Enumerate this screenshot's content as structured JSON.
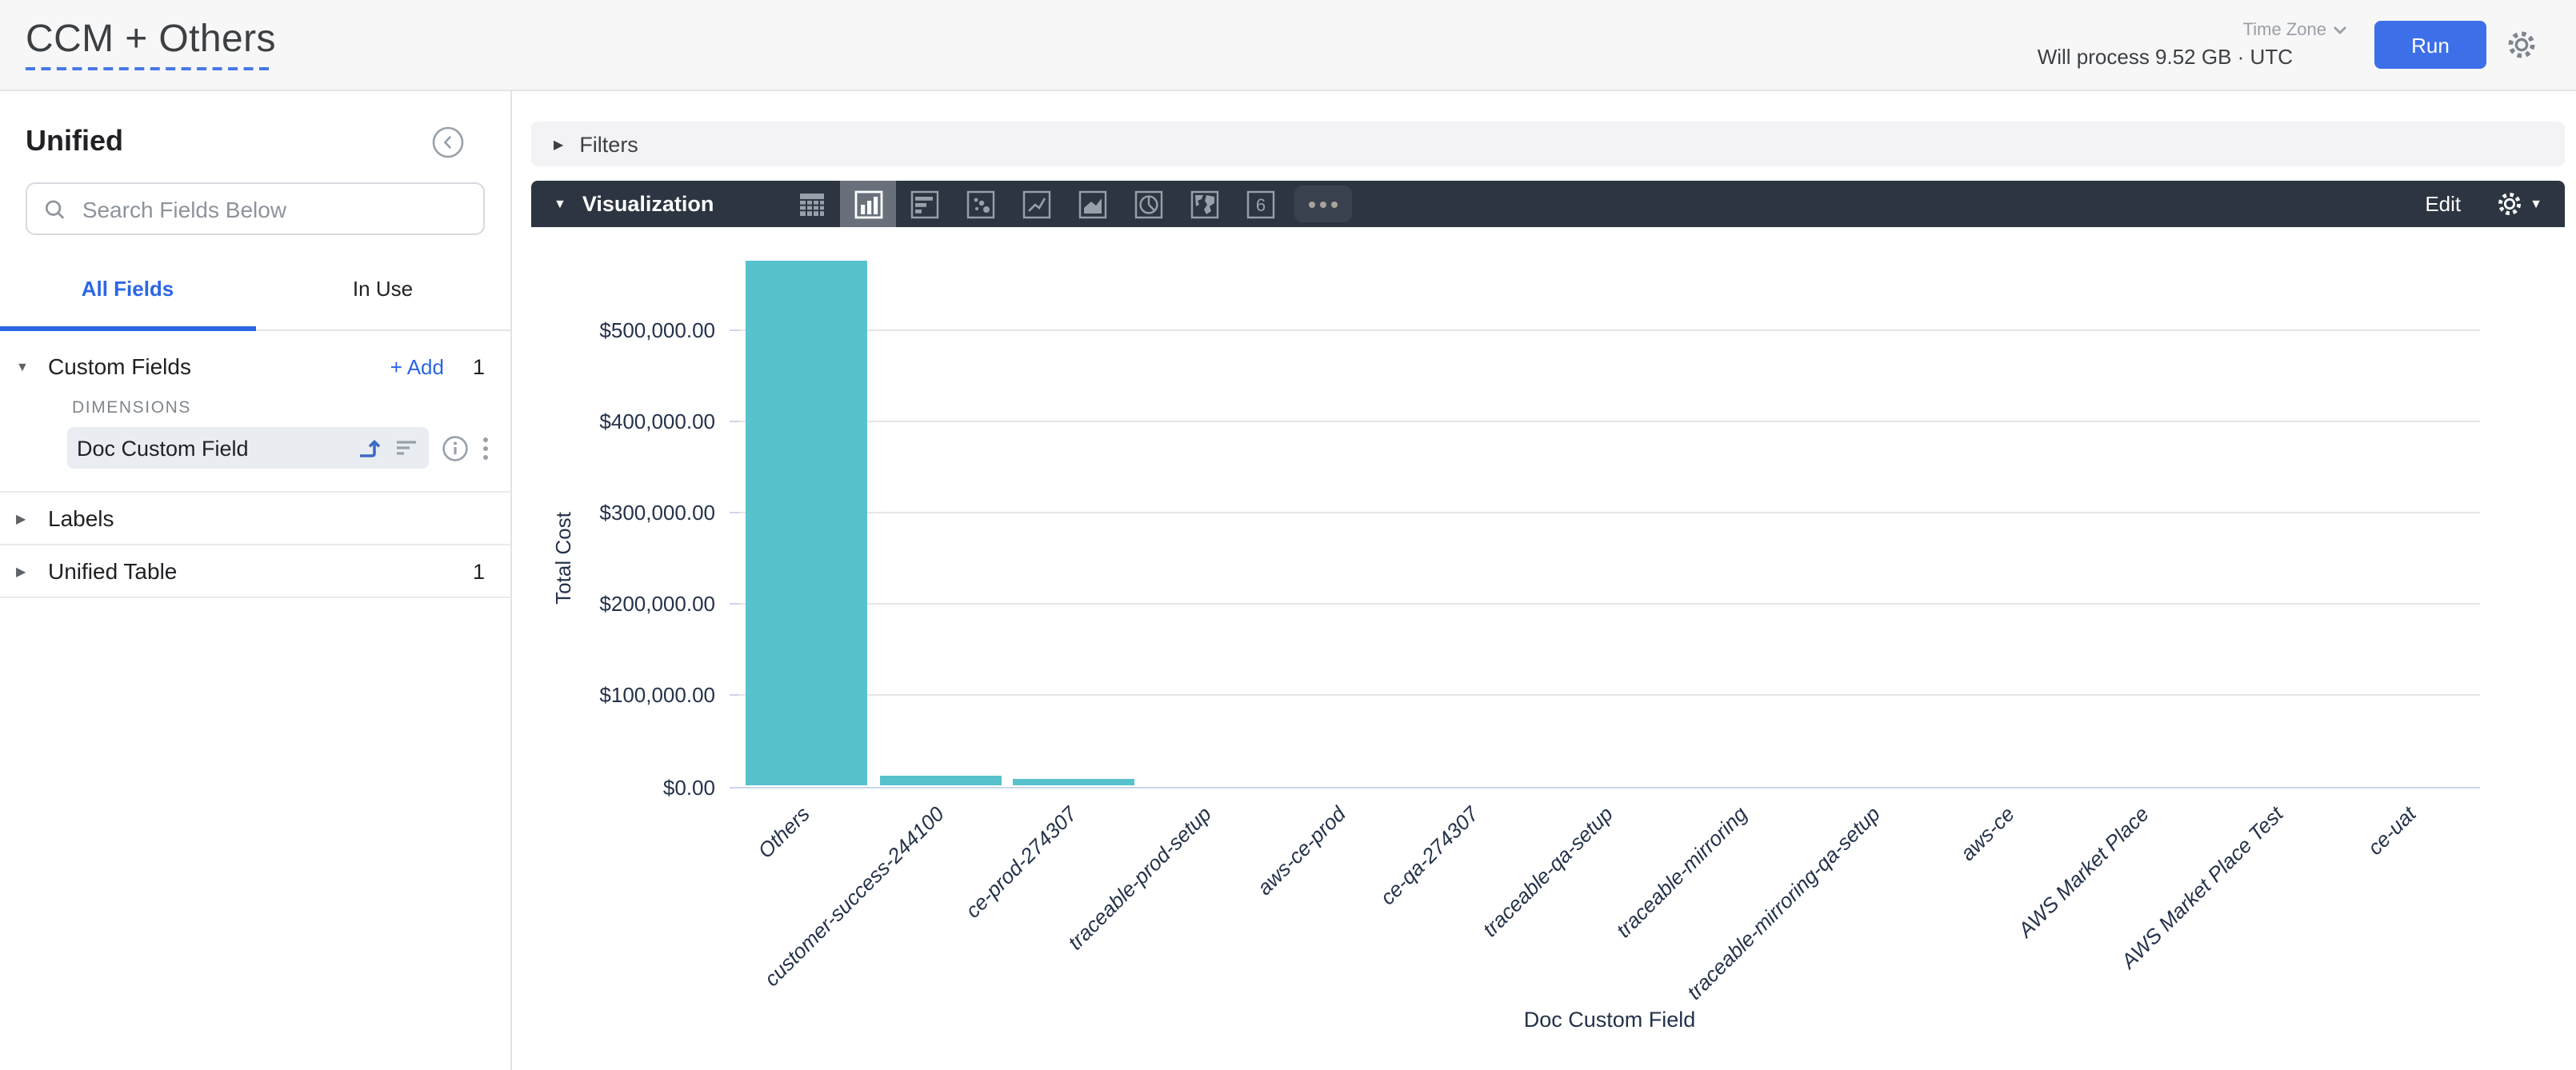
{
  "header": {
    "title": "CCM + Others",
    "time_zone_label": "Time Zone",
    "will_process": "Will process 9.52 GB · UTC",
    "run_label": "Run"
  },
  "sidebar": {
    "title": "Unified",
    "search_placeholder": "Search Fields Below",
    "tabs": [
      {
        "label": "All Fields",
        "active": true
      },
      {
        "label": "In Use",
        "active": false
      }
    ],
    "dimensions_label": "DIMENSIONS",
    "sections": [
      {
        "label": "Custom Fields",
        "expanded": true,
        "add_label": "+ Add",
        "count": "1"
      },
      {
        "label": "Labels",
        "expanded": false,
        "count": ""
      },
      {
        "label": "Unified Table",
        "expanded": false,
        "count": "1"
      }
    ],
    "field_item": {
      "name": "Doc Custom Field"
    }
  },
  "main": {
    "filters_label": "Filters",
    "visualization_label": "Visualization",
    "edit_label": "Edit",
    "viz_icon_names": [
      "table-icon",
      "column-chart-icon",
      "bar-chart-icon",
      "scatter-chart-icon",
      "line-chart-icon",
      "area-chart-icon",
      "pie-chart-icon",
      "map-chart-icon",
      "single-value-icon",
      "more-options-icon"
    ],
    "selected_viz": "column-chart-icon"
  },
  "chart_data": {
    "type": "bar",
    "title": "",
    "xlabel": "Doc Custom Field",
    "ylabel": "Total Cost",
    "categories": [
      "Others",
      "customer-success-244100",
      "ce-prod-274307",
      "traceable-prod-setup",
      "aws-ce-prod",
      "ce-qa-274307",
      "traceable-qa-setup",
      "traceable-mirroring",
      "traceable-mirroring-qa-setup",
      "aws-ce",
      "AWS Market Place",
      "AWS Market Place Test",
      "ce-uat"
    ],
    "values": [
      575000,
      12000,
      8000,
      0,
      0,
      0,
      0,
      0,
      0,
      0,
      0,
      0,
      0
    ],
    "ylim": [
      0,
      600000
    ],
    "ytick_step": 100000,
    "ytick_labels": [
      "$0.00",
      "$100,000.00",
      "$200,000.00",
      "$300,000.00",
      "$400,000.00",
      "$500,000.00"
    ],
    "xtick_rotation": -45,
    "grid": true,
    "legend": "none",
    "bar_color": "#57c2cc"
  }
}
